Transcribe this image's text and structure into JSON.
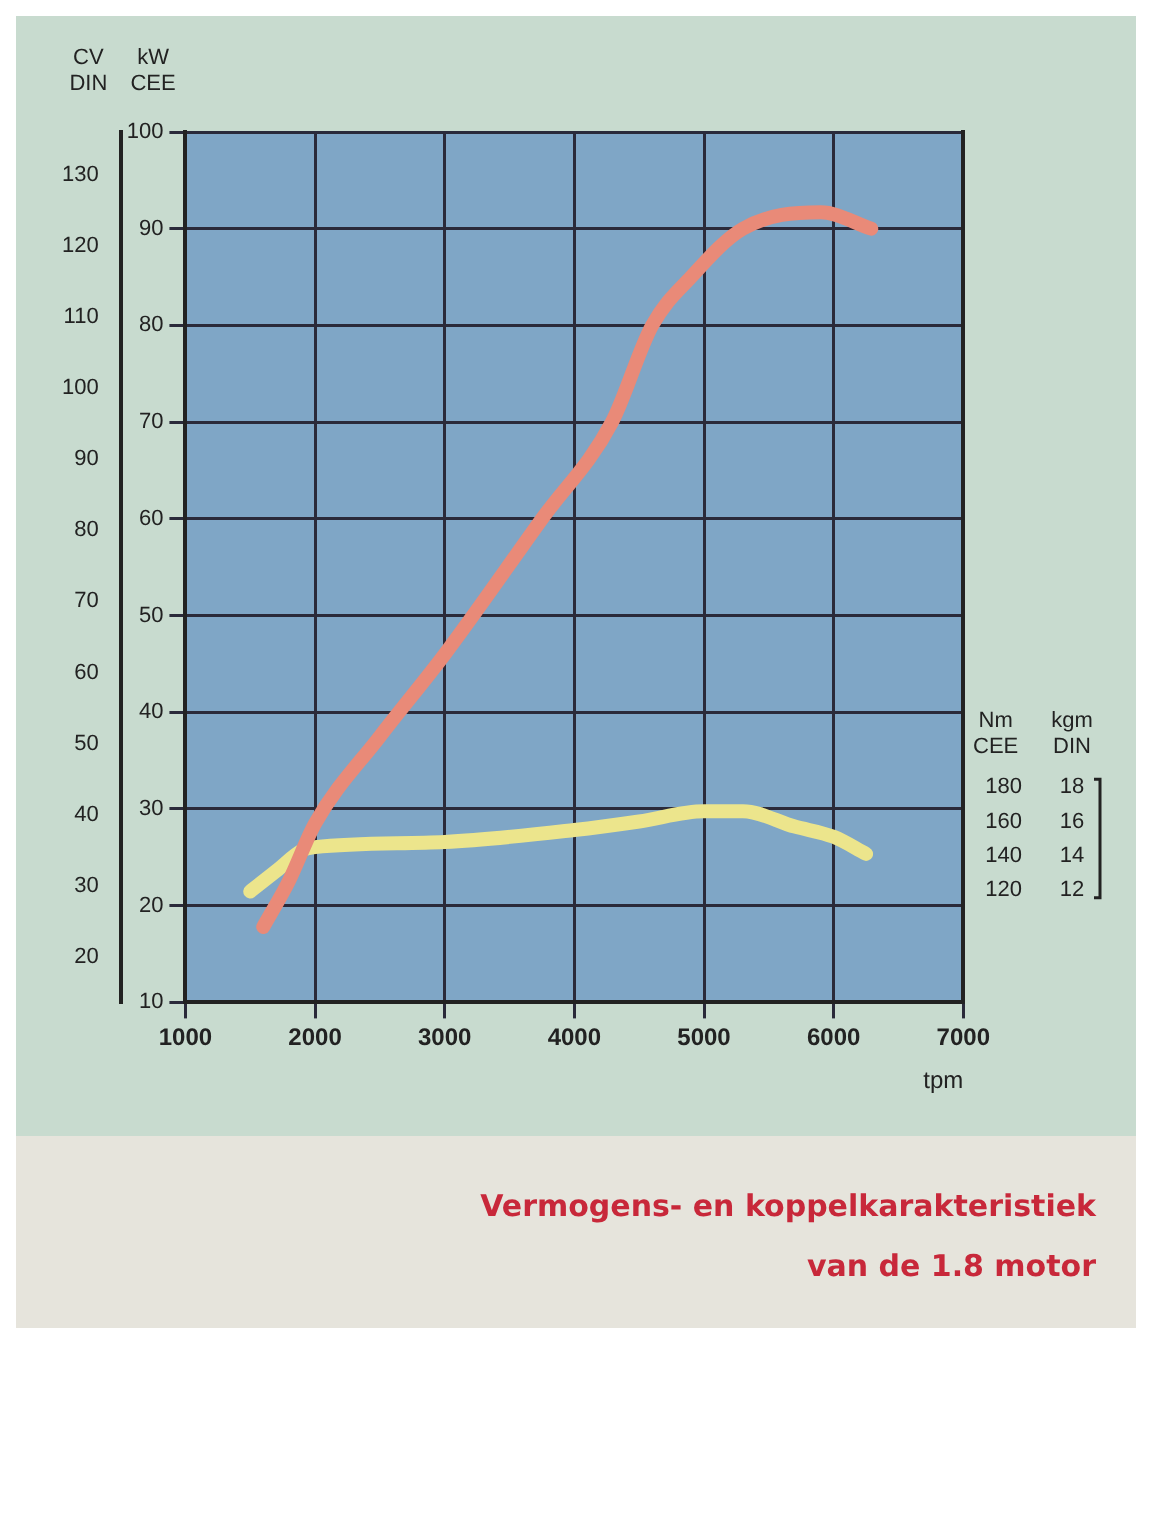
{
  "chart_data": {
    "type": "line",
    "xlabel": "tpm",
    "ylabel": "kW CEE",
    "y2label": "CV DIN",
    "y3label": "Nm CEE",
    "xlim": [
      1000,
      7000
    ],
    "xticks": [
      1000,
      2000,
      3000,
      4000,
      5000,
      6000,
      7000
    ],
    "ylim": [
      10,
      100
    ],
    "yticks": [
      10,
      20,
      30,
      40,
      50,
      60,
      70,
      80,
      90,
      100
    ],
    "y2lim": [
      13.6,
      136
    ],
    "y2ticks": [
      20,
      30,
      40,
      50,
      60,
      70,
      80,
      90,
      100,
      110,
      120,
      130
    ],
    "y3lim": [
      54,
      564
    ],
    "y3ticks": [
      120,
      140,
      160,
      180
    ],
    "grid": true,
    "legend": false,
    "marker": "none",
    "line_style": "solid",
    "series": [
      {
        "color": "#e98a78",
        "axis": "y",
        "x": [
          1600,
          1800,
          2000,
          2500,
          3000,
          3750,
          4290,
          4600,
          4900,
          5300,
          5900,
          6290
        ],
        "values": [
          17.8,
          22.6,
          28.5,
          37.5,
          46,
          60,
          70,
          80,
          85,
          90,
          91.7,
          90
        ]
      },
      {
        "color": "#ece58c",
        "axis": "y3",
        "x": [
          1500,
          1700,
          1900,
          2000,
          3000,
          4000,
          4500,
          5000,
          5300,
          5700,
          6000,
          6250
        ],
        "values": [
          119,
          131,
          143,
          145,
          148,
          155,
          160,
          166,
          166,
          157,
          151,
          141
        ]
      }
    ],
    "annotations": [
      "kgm DIN",
      "18",
      "16",
      "14",
      "12",
      "Vermogens- en koppelkarakteristiek van de 1.8 motor"
    ]
  }
}
